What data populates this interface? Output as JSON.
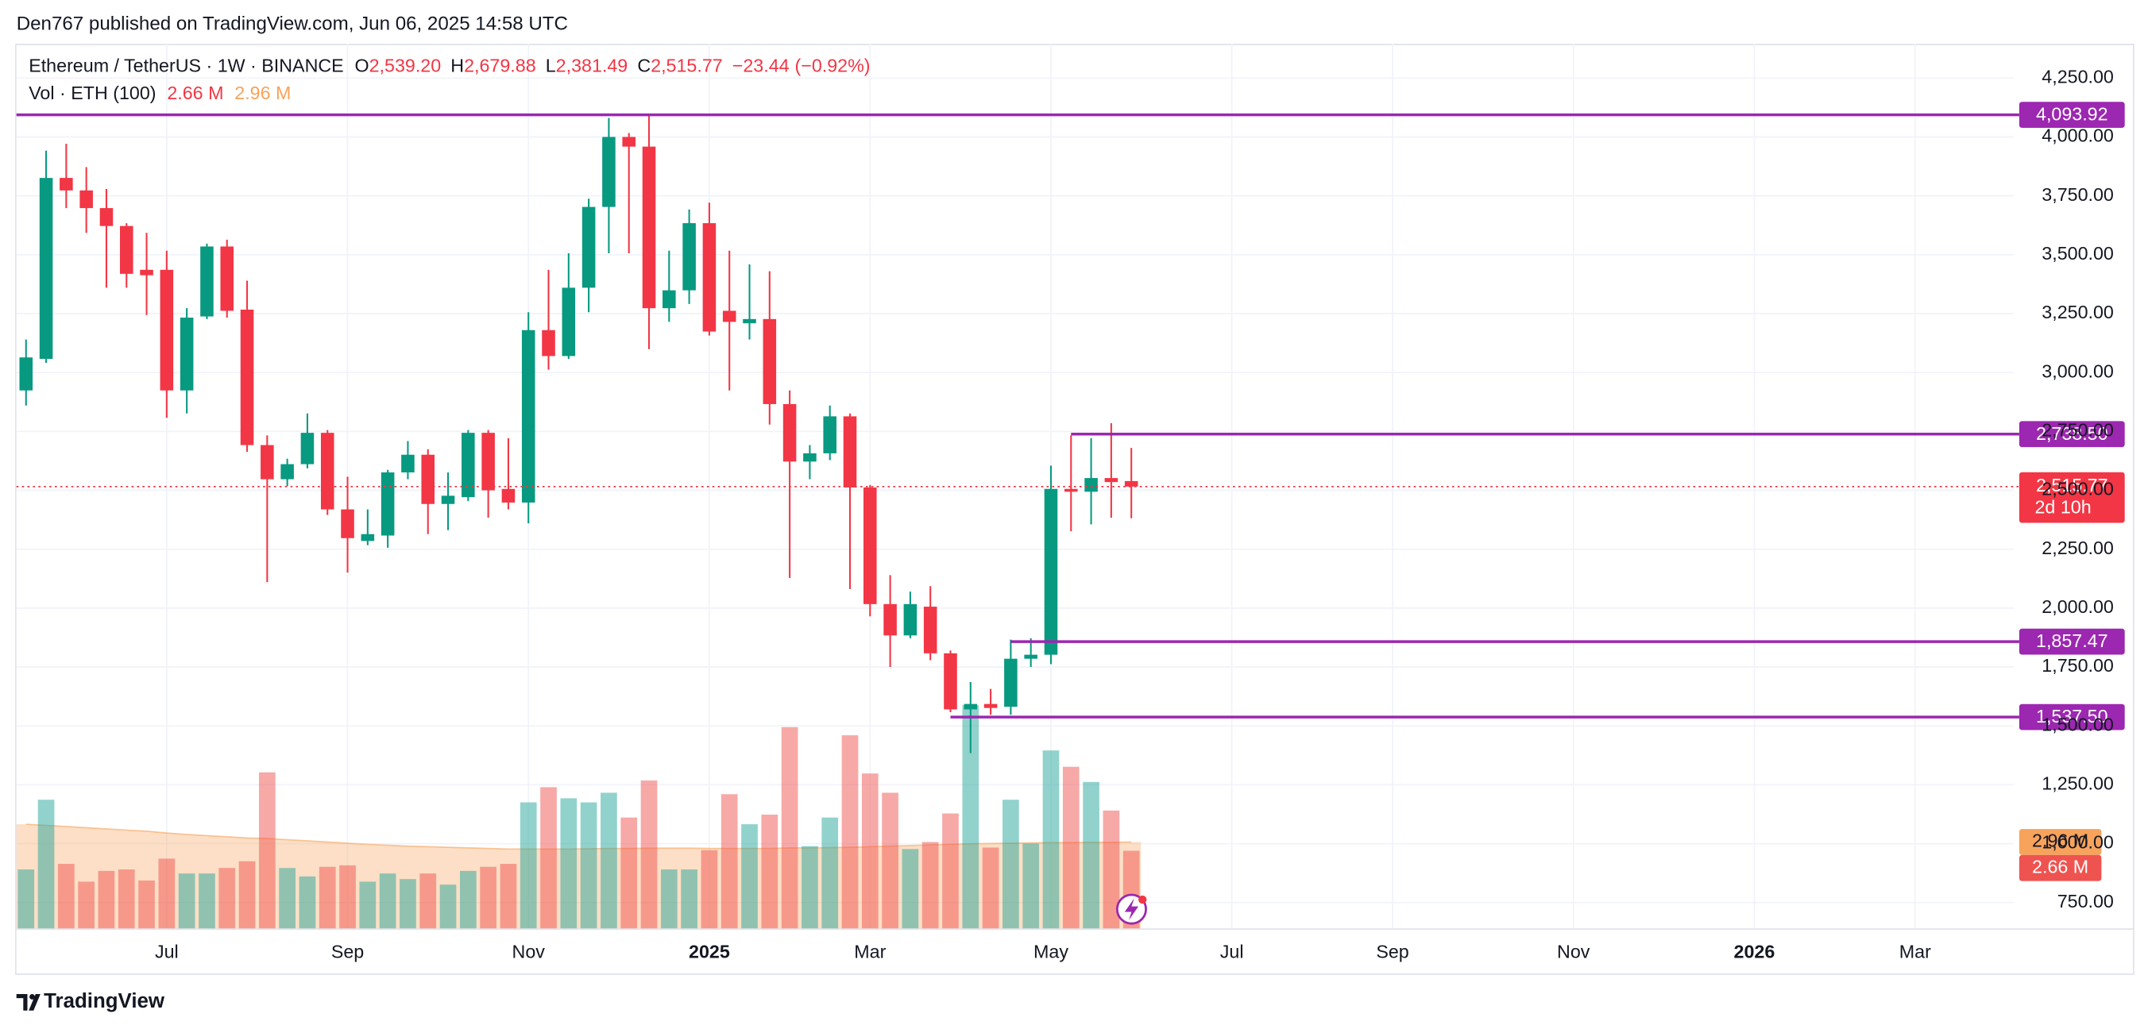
{
  "header": "Den767 published on TradingView.com, Jun 06, 2025 14:58 UTC",
  "footer": "TradingView",
  "chart_data": {
    "type": "candlestick",
    "symbol": "Ethereum / TetherUS · 1W · BINANCE",
    "ohlc_legend": [
      {
        "key": "O",
        "value": 2539.2,
        "label": "2,539.20"
      },
      {
        "key": "H",
        "value": 2679.88,
        "label": "2,679.88"
      },
      {
        "key": "L",
        "value": 2381.49,
        "label": "2,381.49"
      },
      {
        "key": "C",
        "value": 2515.77,
        "label": "2,515.77"
      }
    ],
    "change": {
      "value": -23.44,
      "label": "−23.44"
    },
    "change_pct": {
      "value": -0.92,
      "label": "(−0.92%)"
    },
    "volume_title": "Vol · ETH (100)",
    "volume_last": {
      "value": 2.66,
      "label": "2.66 M"
    },
    "volume_ma_last": {
      "value": 2.96,
      "label": "2.96 M"
    },
    "categories": [
      null,
      null,
      null,
      null,
      null,
      null,
      null,
      "Jul",
      null,
      null,
      null,
      null,
      null,
      null,
      null,
      null,
      "Sep",
      null,
      null,
      null,
      null,
      null,
      null,
      null,
      null,
      "Nov",
      null,
      null,
      null,
      null,
      null,
      null,
      null,
      null,
      "2025",
      null,
      null,
      null,
      null,
      null,
      null,
      null,
      "Mar",
      null,
      null,
      null,
      null,
      null,
      null,
      null,
      null,
      "May",
      null,
      null,
      null,
      null,
      null,
      null,
      null,
      null,
      "Jul",
      null,
      null,
      null,
      null,
      null,
      null,
      null,
      "Sep",
      null,
      null,
      null,
      null,
      null,
      null,
      null,
      null,
      "Nov",
      null,
      null,
      null,
      null,
      null,
      null,
      null,
      null,
      "2026",
      null,
      null,
      null,
      null,
      null,
      null,
      null,
      "Mar",
      null,
      null,
      null,
      null,
      null
    ],
    "open": [
      2924,
      3058,
      3826,
      3773,
      3698,
      3622,
      3436,
      3436,
      2924,
      3238,
      3535,
      3267,
      2692,
      2547,
      2611,
      2744,
      2419,
      2285,
      2308,
      2576,
      2651,
      2442,
      2471,
      2744,
      2506,
      2448,
      3180,
      3070,
      3360,
      3703,
      4000,
      3959,
      3273,
      3349,
      3634,
      3262,
      3209,
      3227,
      2866,
      2622,
      2657,
      2814,
      2512,
      2017,
      1884,
      2006,
      1808,
      1570,
      1593,
      1581,
      1785,
      1802,
      2506,
      2494,
      2552,
      2539.2,
      null,
      null,
      null,
      null,
      null,
      null,
      null,
      null,
      null,
      null,
      null,
      null,
      null,
      null,
      null,
      null,
      null,
      null,
      null,
      null,
      null,
      null,
      null,
      null,
      null,
      null,
      null,
      null,
      null,
      null,
      null,
      null,
      null,
      null,
      null,
      null,
      null,
      null,
      null,
      null,
      null,
      null,
      null,
      null
    ],
    "high": [
      3140,
      3942,
      3971,
      3872,
      3779,
      3634,
      3593,
      3517,
      3273,
      3547,
      3564,
      3390,
      2733,
      2634,
      2826,
      2756,
      2558,
      2419,
      2587,
      2709,
      2674,
      2576,
      2756,
      2756,
      2721,
      3256,
      3436,
      3506,
      3738,
      4081,
      4017,
      4099,
      3517,
      3692,
      3721,
      3517,
      3459,
      3430,
      2924,
      2692,
      2860,
      2826,
      2523,
      2140,
      2070,
      2093,
      1820,
      1686,
      1657,
      1866,
      1872,
      2605,
      2733,
      2721,
      2785,
      2679.88,
      null,
      null,
      null,
      null,
      null,
      null,
      null,
      null,
      null,
      null,
      null,
      null,
      null,
      null,
      null,
      null,
      null,
      null,
      null,
      null,
      null,
      null,
      null,
      null,
      null,
      null,
      null,
      null,
      null,
      null,
      null,
      null,
      null,
      null,
      null,
      null,
      null,
      null,
      null,
      null,
      null,
      null,
      null,
      null
    ],
    "low": [
      2860,
      3041,
      3698,
      3593,
      3360,
      3360,
      3244,
      2808,
      2826,
      3227,
      3233,
      2663,
      2110,
      2517,
      2593,
      2395,
      2151,
      2267,
      2256,
      2547,
      2314,
      2331,
      2454,
      2384,
      2419,
      2360,
      3012,
      3058,
      3256,
      3506,
      3506,
      3099,
      3215,
      3291,
      3157,
      2924,
      3140,
      2779,
      2128,
      2547,
      2628,
      2081,
      1965,
      1750,
      1872,
      1779,
      1558,
      1384,
      1547,
      1547,
      1750,
      1762,
      2326,
      2355,
      2384,
      2381.49,
      null,
      null,
      null,
      null,
      null,
      null,
      null,
      null,
      null,
      null,
      null,
      null,
      null,
      null,
      null,
      null,
      null,
      null,
      null,
      null,
      null,
      null,
      null,
      null,
      null,
      null,
      null,
      null,
      null,
      null,
      null,
      null,
      null,
      null,
      null,
      null,
      null,
      null,
      null,
      null,
      null,
      null,
      null,
      null
    ],
    "close": [
      3064,
      3826,
      3773,
      3698,
      3622,
      3419,
      3413,
      2924,
      3233,
      3535,
      3262,
      2692,
      2547,
      2611,
      2744,
      2419,
      2297,
      2314,
      2576,
      2651,
      2442,
      2477,
      2744,
      2500,
      2448,
      3180,
      3070,
      3360,
      3703,
      4000,
      3959,
      3273,
      3349,
      3634,
      3174,
      3215,
      3227,
      2866,
      2622,
      2657,
      2814,
      2512,
      2017,
      1884,
      2017,
      1808,
      1570,
      1593,
      1576,
      1785,
      1802,
      2506,
      2494,
      2552,
      2535,
      2515.77,
      null,
      null,
      null,
      null,
      null,
      null,
      null,
      null,
      null,
      null,
      null,
      null,
      null,
      null,
      null,
      null,
      null,
      null,
      null,
      null,
      null,
      null,
      null,
      null,
      null,
      null,
      null,
      null,
      null,
      null,
      null,
      null,
      null,
      null,
      null,
      null,
      null,
      null,
      null,
      null,
      null,
      null,
      null,
      null
    ],
    "volume": [
      2.02,
      4.41,
      2.21,
      1.6,
      1.97,
      2.02,
      1.64,
      2.39,
      1.88,
      1.88,
      2.07,
      2.3,
      5.35,
      2.07,
      1.78,
      2.11,
      2.16,
      1.6,
      1.88,
      1.69,
      1.88,
      1.5,
      1.97,
      2.11,
      2.21,
      4.32,
      4.84,
      4.46,
      4.32,
      4.65,
      3.8,
      5.07,
      2.02,
      2.02,
      2.68,
      4.6,
      3.57,
      3.9,
      6.9,
      2.82,
      3.8,
      6.62,
      5.31,
      4.65,
      2.72,
      2.96,
      3.94,
      7.65,
      2.77,
      4.41,
      2.91,
      6.1,
      5.54,
      5.02,
      4.04,
      2.66,
      null,
      null,
      null,
      null,
      null,
      null,
      null,
      null,
      null,
      null,
      null,
      null,
      null,
      null,
      null,
      null,
      null,
      null,
      null,
      null,
      null,
      null,
      null,
      null,
      null,
      null,
      null,
      null,
      null,
      null,
      null,
      null,
      null,
      null,
      null,
      null,
      null,
      null,
      null,
      null,
      null,
      null,
      null,
      null
    ],
    "volume_ma": [
      3.57,
      3.53,
      3.49,
      3.45,
      3.41,
      3.37,
      3.33,
      3.27,
      3.22,
      3.18,
      3.14,
      3.1,
      3.08,
      3.04,
      3.0,
      2.96,
      2.92,
      2.88,
      2.85,
      2.82,
      2.8,
      2.78,
      2.76,
      2.74,
      2.72,
      2.72,
      2.72,
      2.72,
      2.73,
      2.74,
      2.74,
      2.75,
      2.75,
      2.75,
      2.74,
      2.74,
      2.74,
      2.74,
      2.76,
      2.76,
      2.77,
      2.78,
      2.8,
      2.82,
      2.84,
      2.86,
      2.88,
      2.9,
      2.91,
      2.92,
      2.93,
      2.94,
      2.94,
      2.95,
      2.95,
      2.96,
      null,
      null,
      null,
      null,
      null,
      null,
      null,
      null,
      null,
      null,
      null,
      null,
      null,
      null,
      null,
      null,
      null,
      null,
      null,
      null,
      null,
      null,
      null,
      null,
      null,
      null,
      null,
      null,
      null,
      null,
      null,
      null,
      null,
      null,
      null,
      null,
      null,
      null,
      null,
      null,
      null,
      null,
      null,
      null
    ],
    "up_color": "#089981",
    "down_color": "#f23645",
    "volume_up_color": "#26a69a",
    "volume_down_color": "#ef5350",
    "volume_ma_color": "#f7a35c",
    "level_color": "#9c27b0",
    "ylim": [
      640.5,
      4395.3
    ],
    "yticks": [
      {
        "value": 750,
        "label": "750.00"
      },
      {
        "value": 1000,
        "label": "1,000.00"
      },
      {
        "value": 1250,
        "label": "1,250.00"
      },
      {
        "value": 1500,
        "label": "1,500.00"
      },
      {
        "value": 1750,
        "label": "1,750.00"
      },
      {
        "value": 2000,
        "label": "2,000.00"
      },
      {
        "value": 2250,
        "label": "2,250.00"
      },
      {
        "value": 2500,
        "label": "2,500.00"
      },
      {
        "value": 2750,
        "label": "2,750.00"
      },
      {
        "value": 3000,
        "label": "3,000.00"
      },
      {
        "value": 3250,
        "label": "3,250.00"
      },
      {
        "value": 3500,
        "label": "3,500.00"
      },
      {
        "value": 3750,
        "label": "3,750.00"
      },
      {
        "value": 4000,
        "label": "4,000.00"
      },
      {
        "value": 4250,
        "label": "4,250.00"
      }
    ],
    "vlim": [
      0,
      30.33
    ],
    "levels": [
      {
        "value": 4093.92,
        "label": "4,093.92"
      },
      {
        "value": 2738.5,
        "label": "2,738.50",
        "start": 52
      },
      {
        "value": 1857.47,
        "label": "1,857.47",
        "start": 49
      },
      {
        "value": 1537.5,
        "label": "1,537.50",
        "start": 46
      }
    ],
    "last_price": {
      "value": 2515.77,
      "label": "2,515.77"
    },
    "countdown": "2d 10h",
    "grid": true
  }
}
